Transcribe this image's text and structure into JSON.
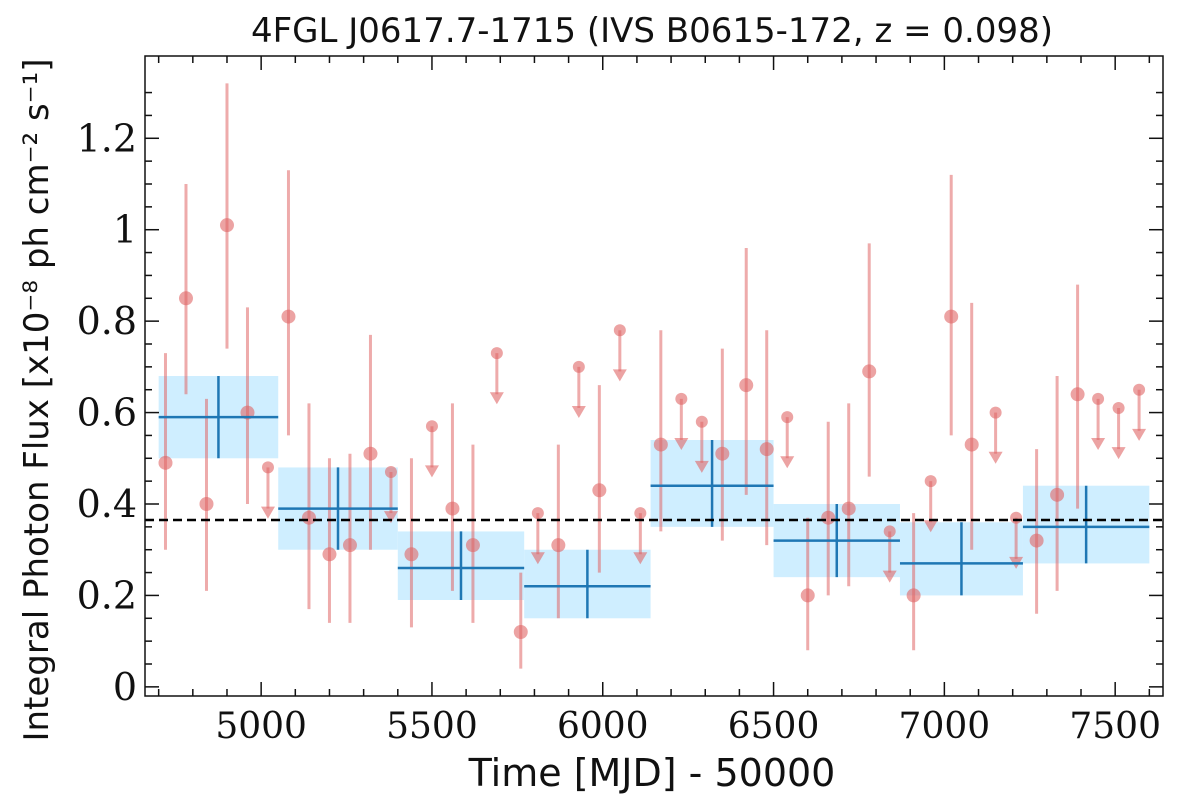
{
  "chart_data": {
    "type": "scatter",
    "title": "4FGL J0617.7-1715 (IVS B0615-172, z = 0.098)",
    "xlabel": "Time [MJD] - 50000",
    "ylabel": "Integral Photon Flux [x10⁻⁸ ph cm⁻² s⁻¹]",
    "xlim": [
      4660,
      7640
    ],
    "ylim": [
      -0.02,
      1.38
    ],
    "x_ticks": [
      5000,
      5500,
      6000,
      6500,
      7000,
      7500
    ],
    "y_ticks": [
      0,
      0.2,
      0.4,
      0.6,
      0.8,
      1.0,
      1.2
    ],
    "y_tick_labels": [
      "0",
      "0.2",
      "0.4",
      "0.6",
      "0.8",
      "1",
      "1.2"
    ],
    "grid": false,
    "reference_line": {
      "y": 0.365,
      "style": "dashed",
      "color": "#000000"
    },
    "colors": {
      "points": "#e06666",
      "bins_line": "#1f77b4",
      "bins_fill": "#cfeeff"
    },
    "points": [
      {
        "x": 4720,
        "y": 0.49,
        "lo": 0.3,
        "hi": 0.73
      },
      {
        "x": 4780,
        "y": 0.85,
        "lo": 0.64,
        "hi": 1.1
      },
      {
        "x": 4840,
        "y": 0.4,
        "lo": 0.21,
        "hi": 0.63
      },
      {
        "x": 4900,
        "y": 1.01,
        "lo": 0.74,
        "hi": 1.32
      },
      {
        "x": 4960,
        "y": 0.6,
        "lo": 0.4,
        "hi": 0.83
      },
      {
        "x": 5080,
        "y": 0.81,
        "lo": 0.55,
        "hi": 1.13
      },
      {
        "x": 5140,
        "y": 0.37,
        "lo": 0.17,
        "hi": 0.62
      },
      {
        "x": 5200,
        "y": 0.29,
        "lo": 0.14,
        "hi": 0.5
      },
      {
        "x": 5260,
        "y": 0.31,
        "lo": 0.14,
        "hi": 0.51
      },
      {
        "x": 5320,
        "y": 0.51,
        "lo": 0.3,
        "hi": 0.77
      },
      {
        "x": 5440,
        "y": 0.29,
        "lo": 0.13,
        "hi": 0.5
      },
      {
        "x": 5560,
        "y": 0.39,
        "lo": 0.21,
        "hi": 0.62
      },
      {
        "x": 5620,
        "y": 0.31,
        "lo": 0.14,
        "hi": 0.53
      },
      {
        "x": 5760,
        "y": 0.12,
        "lo": 0.04,
        "hi": 0.25
      },
      {
        "x": 5870,
        "y": 0.31,
        "lo": 0.15,
        "hi": 0.53
      },
      {
        "x": 5990,
        "y": 0.43,
        "lo": 0.25,
        "hi": 0.66
      },
      {
        "x": 6170,
        "y": 0.53,
        "lo": 0.34,
        "hi": 0.78
      },
      {
        "x": 6350,
        "y": 0.51,
        "lo": 0.32,
        "hi": 0.74
      },
      {
        "x": 6420,
        "y": 0.66,
        "lo": 0.42,
        "hi": 0.96
      },
      {
        "x": 6480,
        "y": 0.52,
        "lo": 0.31,
        "hi": 0.78
      },
      {
        "x": 6600,
        "y": 0.2,
        "lo": 0.08,
        "hi": 0.37
      },
      {
        "x": 6660,
        "y": 0.37,
        "lo": 0.2,
        "hi": 0.58
      },
      {
        "x": 6720,
        "y": 0.39,
        "lo": 0.22,
        "hi": 0.62
      },
      {
        "x": 6780,
        "y": 0.69,
        "lo": 0.46,
        "hi": 0.97
      },
      {
        "x": 6910,
        "y": 0.2,
        "lo": 0.08,
        "hi": 0.38
      },
      {
        "x": 7020,
        "y": 0.81,
        "lo": 0.55,
        "hi": 1.12
      },
      {
        "x": 7080,
        "y": 0.53,
        "lo": 0.3,
        "hi": 0.84
      },
      {
        "x": 7270,
        "y": 0.32,
        "lo": 0.16,
        "hi": 0.52
      },
      {
        "x": 7330,
        "y": 0.42,
        "lo": 0.21,
        "hi": 0.68
      },
      {
        "x": 7390,
        "y": 0.64,
        "lo": 0.39,
        "hi": 0.88
      }
    ],
    "upper_limits": [
      {
        "x": 5020,
        "y": 0.48
      },
      {
        "x": 5380,
        "y": 0.47
      },
      {
        "x": 5500,
        "y": 0.57
      },
      {
        "x": 5690,
        "y": 0.73
      },
      {
        "x": 5810,
        "y": 0.38
      },
      {
        "x": 5930,
        "y": 0.7
      },
      {
        "x": 6050,
        "y": 0.78
      },
      {
        "x": 6110,
        "y": 0.38
      },
      {
        "x": 6230,
        "y": 0.63
      },
      {
        "x": 6290,
        "y": 0.58
      },
      {
        "x": 6540,
        "y": 0.59
      },
      {
        "x": 6840,
        "y": 0.34
      },
      {
        "x": 6960,
        "y": 0.45
      },
      {
        "x": 7150,
        "y": 0.6
      },
      {
        "x": 7210,
        "y": 0.37
      },
      {
        "x": 7450,
        "y": 0.63
      },
      {
        "x": 7510,
        "y": 0.61
      },
      {
        "x": 7570,
        "y": 0.65
      }
    ],
    "bins": [
      {
        "x0": 4700,
        "x1": 5050,
        "y": 0.59,
        "lo": 0.5,
        "hi": 0.68
      },
      {
        "x0": 5050,
        "x1": 5400,
        "y": 0.39,
        "lo": 0.3,
        "hi": 0.48
      },
      {
        "x0": 5400,
        "x1": 5770,
        "y": 0.26,
        "lo": 0.19,
        "hi": 0.34
      },
      {
        "x0": 5770,
        "x1": 6140,
        "y": 0.22,
        "lo": 0.15,
        "hi": 0.3
      },
      {
        "x0": 6140,
        "x1": 6500,
        "y": 0.44,
        "lo": 0.35,
        "hi": 0.54
      },
      {
        "x0": 6500,
        "x1": 6870,
        "y": 0.32,
        "lo": 0.24,
        "hi": 0.4
      },
      {
        "x0": 6870,
        "x1": 7230,
        "y": 0.27,
        "lo": 0.2,
        "hi": 0.36
      },
      {
        "x0": 7230,
        "x1": 7600,
        "y": 0.35,
        "lo": 0.27,
        "hi": 0.44
      }
    ]
  }
}
